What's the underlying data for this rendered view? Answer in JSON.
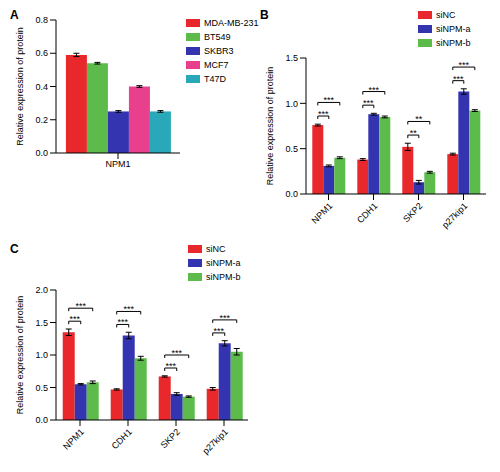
{
  "chart_data": [
    {
      "type": "bar",
      "panel_label": "A",
      "y_label": "Relative expression of protein",
      "categories": [
        "NPM1"
      ],
      "series": [
        {
          "name": "MDA-MB-231",
          "color": "#e8282b",
          "values": [
            0.59
          ],
          "errors": [
            0.01
          ]
        },
        {
          "name": "BT549",
          "color": "#5dbb4b",
          "values": [
            0.54
          ],
          "errors": [
            0.005
          ]
        },
        {
          "name": "SKBR3",
          "color": "#3434b0",
          "values": [
            0.25
          ],
          "errors": [
            0.005
          ]
        },
        {
          "name": "MCF7",
          "color": "#e8408c",
          "values": [
            0.4
          ],
          "errors": [
            0.005
          ]
        },
        {
          "name": "T47D",
          "color": "#28a8b8",
          "values": [
            0.25
          ],
          "errors": [
            0.005
          ]
        }
      ],
      "ylim": [
        0,
        0.8
      ],
      "yticks": [
        {
          "value": 0,
          "label": "0.0"
        },
        0.2,
        0.4,
        0.6,
        0.8
      ],
      "legend": "right",
      "annotations": []
    },
    {
      "type": "bar",
      "panel_label": "B",
      "y_label": "Relative expression of protein",
      "categories": [
        "NPM1",
        "CDH1",
        "SKP2",
        "p27kip1"
      ],
      "series": [
        {
          "name": "siNC",
          "color": "#e8282b",
          "values": [
            0.76,
            0.38,
            0.52,
            0.44
          ],
          "errors": [
            0.01,
            0.01,
            0.04,
            0.01
          ]
        },
        {
          "name": "siNPM-a",
          "color": "#3434b0",
          "values": [
            0.31,
            0.88,
            0.13,
            1.13
          ],
          "errors": [
            0.01,
            0.01,
            0.02,
            0.03
          ]
        },
        {
          "name": "siNPM-b",
          "color": "#5dbb4b",
          "values": [
            0.4,
            0.85,
            0.24,
            0.92
          ],
          "errors": [
            0.01,
            0.01,
            0.01,
            0.01
          ]
        }
      ],
      "ylim": [
        0,
        1.5
      ],
      "yticks": [
        {
          "value": 0,
          "label": "0.0"
        },
        0.5,
        {
          "value": 1,
          "label": "1.0"
        },
        1.5
      ],
      "legend": "top right",
      "annotations": [
        {
          "category": "NPM1",
          "from": "siNC",
          "to": "siNPM-a",
          "text": "***"
        },
        {
          "category": "NPM1",
          "from": "siNC",
          "to": "siNPM-b",
          "text": "***"
        },
        {
          "category": "CDH1",
          "from": "siNC",
          "to": "siNPM-a",
          "text": "***"
        },
        {
          "category": "CDH1",
          "from": "siNC",
          "to": "siNPM-b",
          "text": "***"
        },
        {
          "category": "SKP2",
          "from": "siNC",
          "to": "siNPM-a",
          "text": "**"
        },
        {
          "category": "SKP2",
          "from": "siNC",
          "to": "siNPM-b",
          "text": "**"
        },
        {
          "category": "p27kip1",
          "from": "siNC",
          "to": "siNPM-a",
          "text": "***"
        },
        {
          "category": "p27kip1",
          "from": "siNC",
          "to": "siNPM-b",
          "text": "***"
        }
      ]
    },
    {
      "type": "bar",
      "panel_label": "C",
      "y_label": "Relative expression of protein",
      "categories": [
        "NPM1",
        "CDH1",
        "SKP2",
        "p27kip1"
      ],
      "series": [
        {
          "name": "siNC",
          "color": "#e8282b",
          "values": [
            1.35,
            0.47,
            0.67,
            0.48
          ],
          "errors": [
            0.05,
            0.01,
            0.01,
            0.02
          ]
        },
        {
          "name": "siNPM-a",
          "color": "#3434b0",
          "values": [
            0.55,
            1.3,
            0.4,
            1.18
          ],
          "errors": [
            0.01,
            0.05,
            0.02,
            0.04
          ]
        },
        {
          "name": "siNPM-b",
          "color": "#5dbb4b",
          "values": [
            0.58,
            0.95,
            0.36,
            1.05
          ],
          "errors": [
            0.02,
            0.03,
            0.01,
            0.05
          ]
        }
      ],
      "ylim": [
        0,
        2.0
      ],
      "yticks": [
        {
          "value": 0,
          "label": "0.0"
        },
        0.5,
        {
          "value": 1,
          "label": "1.0"
        },
        1.5,
        {
          "value": 2,
          "label": "2.0"
        }
      ],
      "legend": "top right",
      "annotations": [
        {
          "category": "NPM1",
          "from": "siNC",
          "to": "siNPM-a",
          "text": "***"
        },
        {
          "category": "NPM1",
          "from": "siNC",
          "to": "siNPM-b",
          "text": "***"
        },
        {
          "category": "CDH1",
          "from": "siNC",
          "to": "siNPM-a",
          "text": "***"
        },
        {
          "category": "CDH1",
          "from": "siNC",
          "to": "siNPM-b",
          "text": "***"
        },
        {
          "category": "SKP2",
          "from": "siNC",
          "to": "siNPM-a",
          "text": "***"
        },
        {
          "category": "SKP2",
          "from": "siNC",
          "to": "siNPM-b",
          "text": "***"
        },
        {
          "category": "p27kip1",
          "from": "siNC",
          "to": "siNPM-a",
          "text": "***"
        },
        {
          "category": "p27kip1",
          "from": "siNC",
          "to": "siNPM-b",
          "text": "***"
        }
      ]
    }
  ]
}
